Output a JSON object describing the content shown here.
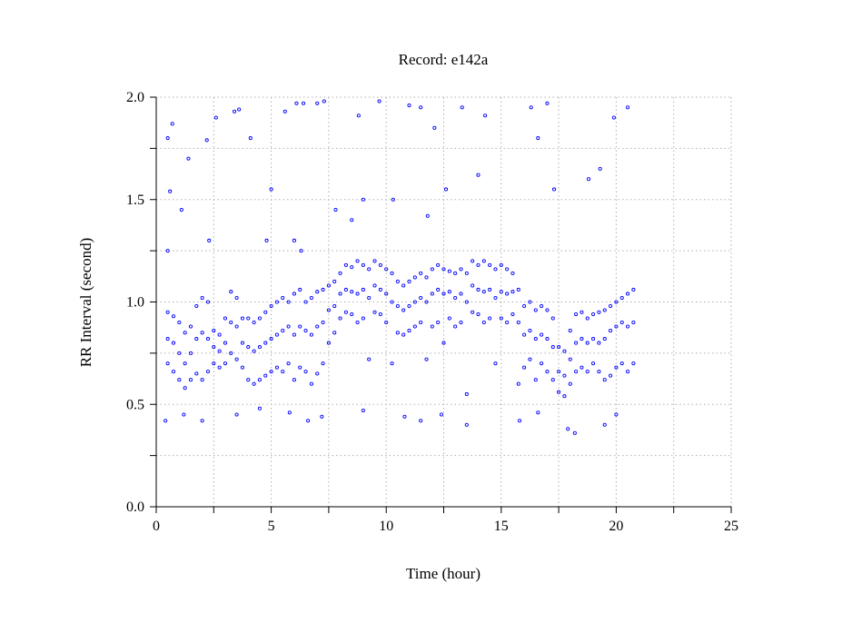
{
  "chart_data": {
    "type": "scatter",
    "title": "Record:  e142a",
    "xlabel": "Time (hour)",
    "ylabel": "RR Interval (second)",
    "xlim": [
      0,
      25
    ],
    "ylim": [
      0,
      2
    ],
    "x_ticks": [
      "0",
      "5",
      "10",
      "15",
      "20",
      "25"
    ],
    "y_ticks": [
      "0.0",
      "0.5",
      "1.0",
      "1.5",
      "2.0"
    ],
    "grid": true,
    "marker": "hollow circle",
    "colors": {
      "points": "#0000ff",
      "axes": "#000000",
      "grid": "#b0b0b0"
    },
    "series": [
      {
        "points": [
          [
            0.5,
            0.7
          ],
          [
            0.5,
            0.82
          ],
          [
            0.5,
            0.95
          ],
          [
            0.75,
            0.66
          ],
          [
            0.75,
            0.8
          ],
          [
            0.75,
            0.93
          ],
          [
            1.0,
            0.62
          ],
          [
            1.0,
            0.75
          ],
          [
            1.0,
            0.9
          ],
          [
            1.25,
            0.58
          ],
          [
            1.25,
            0.7
          ],
          [
            1.25,
            0.85
          ],
          [
            1.5,
            0.62
          ],
          [
            1.5,
            0.75
          ],
          [
            1.5,
            0.88
          ],
          [
            1.75,
            0.65
          ],
          [
            1.75,
            0.82
          ],
          [
            1.75,
            0.98
          ],
          [
            2.0,
            0.62
          ],
          [
            2.0,
            0.85
          ],
          [
            2.0,
            1.02
          ],
          [
            2.25,
            0.66
          ],
          [
            2.25,
            0.82
          ],
          [
            2.25,
            1.0
          ],
          [
            2.5,
            0.7
          ],
          [
            2.5,
            0.78
          ],
          [
            2.5,
            0.86
          ],
          [
            2.75,
            0.68
          ],
          [
            2.75,
            0.76
          ],
          [
            2.75,
            0.84
          ],
          [
            3.0,
            0.7
          ],
          [
            3.0,
            0.8
          ],
          [
            3.0,
            0.92
          ],
          [
            3.25,
            0.75
          ],
          [
            3.25,
            0.9
          ],
          [
            3.25,
            1.05
          ],
          [
            3.5,
            0.72
          ],
          [
            3.5,
            0.88
          ],
          [
            3.5,
            1.02
          ],
          [
            3.75,
            0.68
          ],
          [
            3.75,
            0.8
          ],
          [
            3.75,
            0.92
          ],
          [
            4.0,
            0.62
          ],
          [
            4.0,
            0.78
          ],
          [
            4.0,
            0.92
          ],
          [
            4.25,
            0.6
          ],
          [
            4.25,
            0.76
          ],
          [
            4.25,
            0.9
          ],
          [
            4.5,
            0.62
          ],
          [
            4.5,
            0.78
          ],
          [
            4.5,
            0.92
          ],
          [
            4.75,
            0.64
          ],
          [
            4.75,
            0.8
          ],
          [
            4.75,
            0.95
          ],
          [
            5.0,
            0.66
          ],
          [
            5.0,
            0.82
          ],
          [
            5.0,
            0.98
          ],
          [
            5.25,
            0.68
          ],
          [
            5.25,
            0.84
          ],
          [
            5.25,
            1.0
          ],
          [
            5.5,
            0.66
          ],
          [
            5.5,
            0.86
          ],
          [
            5.5,
            1.02
          ],
          [
            5.75,
            0.7
          ],
          [
            5.75,
            0.88
          ],
          [
            5.75,
            1.0
          ],
          [
            6.0,
            0.62
          ],
          [
            6.0,
            0.84
          ],
          [
            6.0,
            1.04
          ],
          [
            6.25,
            0.68
          ],
          [
            6.25,
            0.88
          ],
          [
            6.25,
            1.06
          ],
          [
            6.5,
            0.66
          ],
          [
            6.5,
            0.86
          ],
          [
            6.5,
            1.0
          ],
          [
            6.75,
            0.6
          ],
          [
            6.75,
            0.84
          ],
          [
            6.75,
            1.02
          ],
          [
            7.0,
            0.65
          ],
          [
            7.0,
            0.88
          ],
          [
            7.0,
            1.05
          ],
          [
            7.25,
            0.7
          ],
          [
            7.25,
            0.9
          ],
          [
            7.25,
            1.06
          ],
          [
            7.5,
            0.8
          ],
          [
            7.5,
            0.96
          ],
          [
            7.5,
            1.08
          ],
          [
            7.75,
            0.85
          ],
          [
            7.75,
            0.98
          ],
          [
            7.75,
            1.1
          ],
          [
            8.0,
            0.92
          ],
          [
            8.0,
            1.04
          ],
          [
            8.0,
            1.14
          ],
          [
            8.25,
            0.95
          ],
          [
            8.25,
            1.06
          ],
          [
            8.25,
            1.18
          ],
          [
            8.5,
            0.94
          ],
          [
            8.5,
            1.05
          ],
          [
            8.5,
            1.17
          ],
          [
            8.75,
            0.9
          ],
          [
            8.75,
            1.04
          ],
          [
            8.75,
            1.2
          ],
          [
            9.0,
            0.92
          ],
          [
            9.0,
            1.06
          ],
          [
            9.0,
            1.18
          ],
          [
            9.25,
            0.72
          ],
          [
            9.25,
            1.02
          ],
          [
            9.25,
            1.16
          ],
          [
            9.5,
            0.95
          ],
          [
            9.5,
            1.08
          ],
          [
            9.5,
            1.2
          ],
          [
            9.75,
            0.94
          ],
          [
            9.75,
            1.06
          ],
          [
            9.75,
            1.18
          ],
          [
            10.0,
            0.9
          ],
          [
            10.0,
            1.04
          ],
          [
            10.0,
            1.16
          ],
          [
            10.25,
            0.7
          ],
          [
            10.25,
            1.0
          ],
          [
            10.25,
            1.14
          ],
          [
            10.5,
            0.85
          ],
          [
            10.5,
            0.98
          ],
          [
            10.5,
            1.1
          ],
          [
            10.75,
            0.84
          ],
          [
            10.75,
            0.96
          ],
          [
            10.75,
            1.08
          ],
          [
            11.0,
            0.86
          ],
          [
            11.0,
            0.98
          ],
          [
            11.0,
            1.1
          ],
          [
            11.25,
            0.88
          ],
          [
            11.25,
            1.0
          ],
          [
            11.25,
            1.12
          ],
          [
            11.5,
            0.9
          ],
          [
            11.5,
            1.02
          ],
          [
            11.5,
            1.14
          ],
          [
            11.75,
            0.72
          ],
          [
            11.75,
            1.0
          ],
          [
            11.75,
            1.12
          ],
          [
            12.0,
            0.88
          ],
          [
            12.0,
            1.04
          ],
          [
            12.0,
            1.16
          ],
          [
            12.25,
            0.9
          ],
          [
            12.25,
            1.06
          ],
          [
            12.25,
            1.18
          ],
          [
            12.5,
            0.8
          ],
          [
            12.5,
            1.04
          ],
          [
            12.5,
            1.16
          ],
          [
            12.75,
            0.92
          ],
          [
            12.75,
            1.05
          ],
          [
            12.75,
            1.15
          ],
          [
            13.0,
            0.88
          ],
          [
            13.0,
            1.02
          ],
          [
            13.0,
            1.14
          ],
          [
            13.25,
            0.9
          ],
          [
            13.25,
            1.04
          ],
          [
            13.25,
            1.16
          ],
          [
            13.5,
            0.55
          ],
          [
            13.5,
            1.0
          ],
          [
            13.5,
            1.14
          ],
          [
            13.75,
            0.95
          ],
          [
            13.75,
            1.08
          ],
          [
            13.75,
            1.2
          ],
          [
            14.0,
            0.94
          ],
          [
            14.0,
            1.06
          ],
          [
            14.0,
            1.18
          ],
          [
            14.25,
            0.9
          ],
          [
            14.25,
            1.05
          ],
          [
            14.25,
            1.2
          ],
          [
            14.5,
            0.92
          ],
          [
            14.5,
            1.06
          ],
          [
            14.5,
            1.18
          ],
          [
            14.75,
            0.7
          ],
          [
            14.75,
            1.02
          ],
          [
            14.75,
            1.16
          ],
          [
            15.0,
            0.92
          ],
          [
            15.0,
            1.05
          ],
          [
            15.0,
            1.18
          ],
          [
            15.25,
            0.9
          ],
          [
            15.25,
            1.04
          ],
          [
            15.25,
            1.16
          ],
          [
            15.5,
            0.94
          ],
          [
            15.5,
            1.05
          ],
          [
            15.5,
            1.14
          ],
          [
            15.75,
            0.6
          ],
          [
            15.75,
            0.9
          ],
          [
            15.75,
            1.06
          ],
          [
            16.0,
            0.68
          ],
          [
            16.0,
            0.84
          ],
          [
            16.0,
            0.98
          ],
          [
            16.25,
            0.72
          ],
          [
            16.25,
            0.86
          ],
          [
            16.25,
            1.0
          ],
          [
            16.5,
            0.62
          ],
          [
            16.5,
            0.82
          ],
          [
            16.5,
            0.96
          ],
          [
            16.75,
            0.7
          ],
          [
            16.75,
            0.84
          ],
          [
            16.75,
            0.98
          ],
          [
            17.0,
            0.66
          ],
          [
            17.0,
            0.82
          ],
          [
            17.0,
            0.96
          ],
          [
            17.25,
            0.62
          ],
          [
            17.25,
            0.78
          ],
          [
            17.25,
            0.92
          ],
          [
            17.5,
            0.56
          ],
          [
            17.5,
            0.66
          ],
          [
            17.5,
            0.78
          ],
          [
            17.75,
            0.54
          ],
          [
            17.75,
            0.64
          ],
          [
            17.75,
            0.76
          ],
          [
            18.0,
            0.6
          ],
          [
            18.0,
            0.72
          ],
          [
            18.0,
            0.86
          ],
          [
            18.25,
            0.66
          ],
          [
            18.25,
            0.8
          ],
          [
            18.25,
            0.94
          ],
          [
            18.5,
            0.68
          ],
          [
            18.5,
            0.82
          ],
          [
            18.5,
            0.95
          ],
          [
            18.75,
            0.66
          ],
          [
            18.75,
            0.8
          ],
          [
            18.75,
            0.92
          ],
          [
            19.0,
            0.7
          ],
          [
            19.0,
            0.82
          ],
          [
            19.0,
            0.94
          ],
          [
            19.25,
            0.66
          ],
          [
            19.25,
            0.8
          ],
          [
            19.25,
            0.95
          ],
          [
            19.5,
            0.62
          ],
          [
            19.5,
            0.82
          ],
          [
            19.5,
            0.96
          ],
          [
            19.75,
            0.64
          ],
          [
            19.75,
            0.86
          ],
          [
            19.75,
            0.98
          ],
          [
            20.0,
            0.68
          ],
          [
            20.0,
            0.88
          ],
          [
            20.0,
            1.0
          ],
          [
            20.25,
            0.7
          ],
          [
            20.25,
            0.9
          ],
          [
            20.25,
            1.02
          ],
          [
            20.5,
            0.66
          ],
          [
            20.5,
            0.88
          ],
          [
            20.5,
            1.04
          ],
          [
            20.75,
            0.7
          ],
          [
            20.75,
            0.9
          ],
          [
            20.75,
            1.06
          ],
          [
            0.5,
            1.8
          ],
          [
            0.7,
            1.87
          ],
          [
            0.6,
            1.54
          ],
          [
            1.1,
            1.45
          ],
          [
            1.4,
            1.7
          ],
          [
            2.2,
            1.79
          ],
          [
            2.6,
            1.9
          ],
          [
            3.4,
            1.93
          ],
          [
            3.6,
            1.94
          ],
          [
            4.1,
            1.8
          ],
          [
            4.8,
            1.3
          ],
          [
            5.0,
            1.55
          ],
          [
            5.6,
            1.93
          ],
          [
            6.1,
            1.97
          ],
          [
            6.4,
            1.97
          ],
          [
            7.0,
            1.97
          ],
          [
            7.3,
            1.98
          ],
          [
            6.0,
            1.3
          ],
          [
            6.3,
            1.25
          ],
          [
            8.8,
            1.91
          ],
          [
            9.7,
            1.98
          ],
          [
            9.0,
            1.5
          ],
          [
            10.3,
            1.5
          ],
          [
            11.0,
            1.96
          ],
          [
            11.5,
            1.95
          ],
          [
            12.1,
            1.85
          ],
          [
            12.6,
            1.55
          ],
          [
            13.3,
            1.95
          ],
          [
            14.3,
            1.91
          ],
          [
            14.0,
            1.62
          ],
          [
            16.3,
            1.95
          ],
          [
            16.6,
            1.8
          ],
          [
            17.0,
            1.97
          ],
          [
            17.3,
            1.55
          ],
          [
            18.8,
            1.6
          ],
          [
            19.3,
            1.65
          ],
          [
            19.9,
            1.9
          ],
          [
            20.5,
            1.95
          ],
          [
            1.2,
            0.45
          ],
          [
            2.0,
            0.42
          ],
          [
            3.5,
            0.45
          ],
          [
            4.5,
            0.48
          ],
          [
            5.8,
            0.46
          ],
          [
            6.6,
            0.42
          ],
          [
            7.2,
            0.44
          ],
          [
            9.0,
            0.47
          ],
          [
            10.8,
            0.44
          ],
          [
            11.5,
            0.42
          ],
          [
            12.4,
            0.45
          ],
          [
            13.5,
            0.4
          ],
          [
            15.8,
            0.42
          ],
          [
            16.6,
            0.46
          ],
          [
            17.9,
            0.38
          ],
          [
            18.2,
            0.36
          ],
          [
            19.5,
            0.4
          ],
          [
            20.0,
            0.45
          ],
          [
            0.4,
            0.42
          ],
          [
            0.5,
            1.25
          ],
          [
            2.3,
            1.3
          ],
          [
            7.8,
            1.45
          ],
          [
            8.5,
            1.4
          ],
          [
            11.8,
            1.42
          ]
        ]
      }
    ]
  }
}
